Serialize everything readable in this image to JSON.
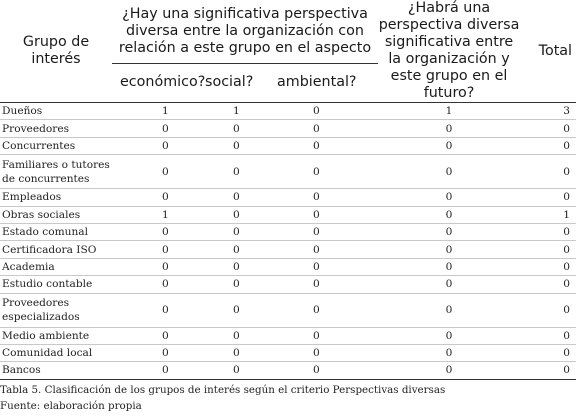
{
  "header": {
    "group": "Grupo de interés",
    "question1": "¿Hay una significativa perspectiva diversa entre la organización con relación a este grupo en el aspecto",
    "aspects": [
      "económico?",
      "social?",
      "ambiental?"
    ],
    "question2": "¿Habrá una perspectiva diversa significativa entre la organización y este grupo en el futuro?",
    "total": "Total"
  },
  "rows": [
    {
      "name": "Dueños",
      "v": [
        "1",
        "1",
        "0",
        "1",
        "3"
      ]
    },
    {
      "name": "Proveedores",
      "v": [
        "0",
        "0",
        "0",
        "0",
        "0"
      ]
    },
    {
      "name": "Concurrentes",
      "v": [
        "0",
        "0",
        "0",
        "0",
        "0"
      ]
    },
    {
      "name": "Familiares o tutores de concurrentes",
      "v": [
        "0",
        "0",
        "0",
        "0",
        "0"
      ],
      "tall": true
    },
    {
      "name": "Empleados",
      "v": [
        "0",
        "0",
        "0",
        "0",
        "0"
      ]
    },
    {
      "name": "Obras sociales",
      "v": [
        "1",
        "0",
        "0",
        "0",
        "1"
      ]
    },
    {
      "name": "Estado comunal",
      "v": [
        "0",
        "0",
        "0",
        "0",
        "0"
      ]
    },
    {
      "name": "Certificadora ISO",
      "v": [
        "0",
        "0",
        "0",
        "0",
        "0"
      ]
    },
    {
      "name": "Academia",
      "v": [
        "0",
        "0",
        "0",
        "0",
        "0"
      ]
    },
    {
      "name": "Estudio contable",
      "v": [
        "0",
        "0",
        "0",
        "0",
        "0"
      ]
    },
    {
      "name": "Proveedores especializados",
      "v": [
        "0",
        "0",
        "0",
        "0",
        "0"
      ],
      "tall": true
    },
    {
      "name": "Medio ambiente",
      "v": [
        "0",
        "0",
        "0",
        "0",
        "0"
      ]
    },
    {
      "name": "Comunidad local",
      "v": [
        "0",
        "0",
        "0",
        "0",
        "0"
      ]
    },
    {
      "name": "Bancos",
      "v": [
        "0",
        "0",
        "0",
        "0",
        "0"
      ]
    }
  ],
  "caption": "Tabla 5. Clasificación de los grupos de interés según el criterio Perspectivas diversas",
  "source": "Fuente: elaboración propia"
}
